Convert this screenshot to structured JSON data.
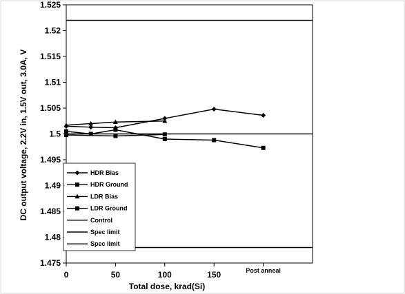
{
  "chart_data": {
    "type": "line",
    "title": "",
    "xlabel": "Total dose, krad(Si)",
    "ylabel": "DC output voltage, 2.2V in, 1.5V out, 3.0A, V",
    "x_ticks": [
      "0",
      "50",
      "100",
      "150",
      "Post anneal"
    ],
    "x_tick_values": [
      0,
      50,
      100,
      150,
      200
    ],
    "xlim": [
      0,
      250
    ],
    "ylim": [
      1.475,
      1.525
    ],
    "y_ticks": [
      "1.475",
      "1.48",
      "1.485",
      "1.49",
      "1.495",
      "1.5",
      "1.505",
      "1.51",
      "1.515",
      "1.52",
      "1.525"
    ],
    "y_tick_values": [
      1.475,
      1.48,
      1.485,
      1.49,
      1.495,
      1.5,
      1.505,
      1.51,
      1.515,
      1.52,
      1.525
    ],
    "grid": false,
    "legend_position": "bottom-left",
    "series": [
      {
        "name": "HDR Bias",
        "marker": "diamond",
        "x": [
          0,
          25,
          50,
          100,
          150,
          200
        ],
        "y": [
          1.5015,
          1.5013,
          1.5012,
          1.503,
          1.5048,
          1.5036
        ]
      },
      {
        "name": "HDR Ground",
        "marker": "square",
        "x": [
          0,
          25,
          50,
          100,
          150,
          200
        ],
        "y": [
          1.5005,
          1.5,
          1.5008,
          1.499,
          1.4988,
          1.4973
        ]
      },
      {
        "name": "LDR Bias",
        "marker": "triangle",
        "x": [
          0,
          25,
          50,
          100
        ],
        "y": [
          1.5017,
          1.502,
          1.5023,
          1.5025
        ]
      },
      {
        "name": "LDR Ground",
        "marker": "square",
        "x": [
          0,
          50,
          100
        ],
        "y": [
          1.4998,
          1.4996,
          1.4999
        ]
      },
      {
        "name": "Control",
        "marker": "none",
        "x": [
          0,
          250
        ],
        "y": [
          1.5,
          1.5
        ]
      },
      {
        "name": "Spec limit",
        "marker": "none",
        "x": [
          0,
          250
        ],
        "y": [
          1.522,
          1.522
        ]
      },
      {
        "name": "Spec limit",
        "marker": "none",
        "x": [
          0,
          250
        ],
        "y": [
          1.478,
          1.478
        ]
      }
    ]
  }
}
